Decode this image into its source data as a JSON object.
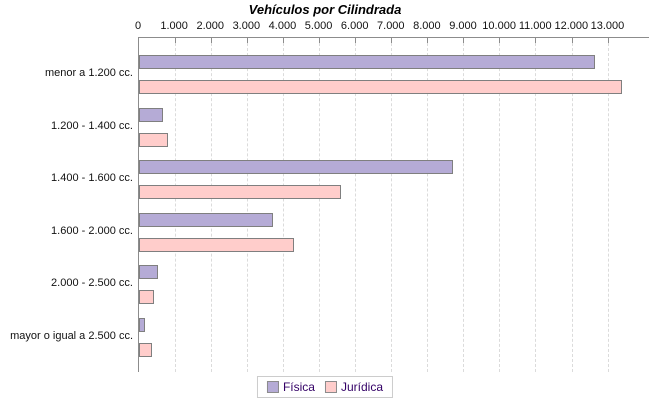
{
  "title": "Vehículos por Cilindrada",
  "colors": {
    "fisica": "#B5ABD6",
    "juridica": "#FFCDCB",
    "bar_border": "#7F7F7F",
    "axis": "#8C8C8C",
    "gridline": "#DBDBDB",
    "legend_border": "#CCCCCC",
    "legend_text": "#330066",
    "background": "#FFFFFF"
  },
  "chart_data": {
    "type": "bar",
    "orientation": "horizontal",
    "title": "Vehículos por Cilindrada",
    "categories": [
      "menor a 1.200 cc.",
      "1.200 - 1.400 cc.",
      "1.400 - 1.600 cc.",
      "1.600 - 2.000 cc.",
      "2.000 - 2.500 cc.",
      "mayor o igual a 2.500 cc."
    ],
    "series": [
      {
        "name": "Física",
        "color": "#B5ABD6",
        "values": [
          12600,
          600,
          8650,
          3650,
          480,
          110
        ]
      },
      {
        "name": "Jurídica",
        "color": "#FFCDCB",
        "values": [
          13350,
          740,
          5550,
          4250,
          370,
          300
        ]
      }
    ],
    "x_tick_labels": [
      "0",
      "1.000",
      "2.000",
      "3.000",
      "4.000",
      "5.000",
      "6.000",
      "7.000",
      "8.000",
      "9.000",
      "10.000",
      "11.000",
      "12.000",
      "13.000"
    ],
    "x_tick_values": [
      0,
      1000,
      2000,
      3000,
      4000,
      5000,
      6000,
      7000,
      8000,
      9000,
      10000,
      11000,
      12000,
      13000
    ],
    "xlim": [
      0,
      14150
    ],
    "grid": "vertical-dashed",
    "legend_position": "bottom-center"
  },
  "legend": {
    "items": [
      {
        "label": "Física",
        "color": "#B5ABD6"
      },
      {
        "label": "Jurídica",
        "color": "#FFCDCB"
      }
    ]
  }
}
